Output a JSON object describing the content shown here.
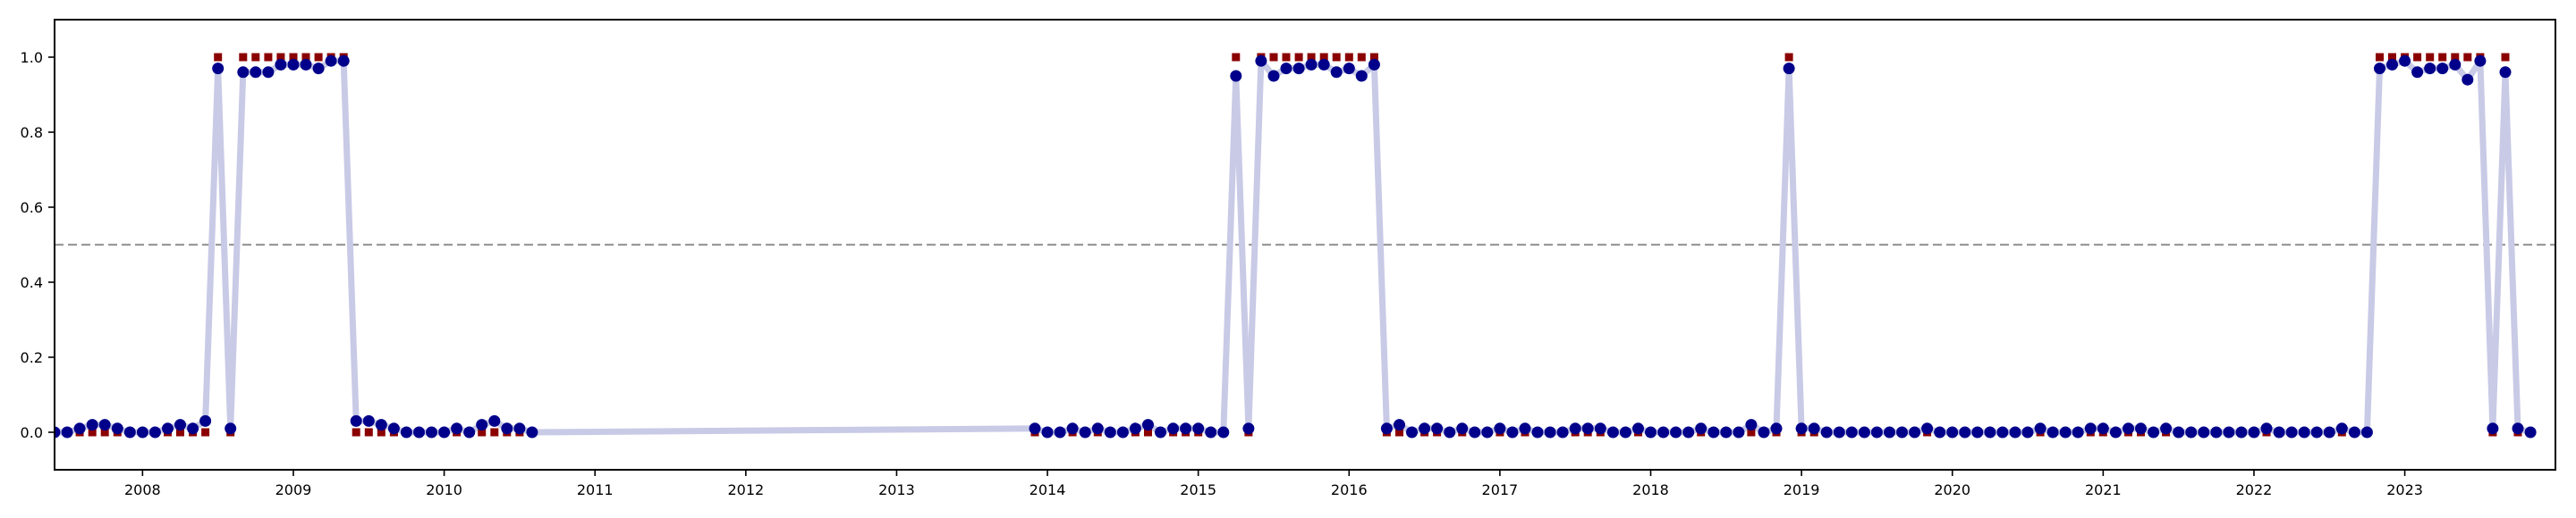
{
  "chart_data": {
    "type": "line",
    "title": "",
    "xlabel": "",
    "ylabel": "",
    "x_type": "date",
    "xlim": [
      "2007-06-01",
      "2023-12-31"
    ],
    "ylim": [
      -0.1,
      1.1
    ],
    "grid": false,
    "legend": "none",
    "x_ticks": [
      "2008",
      "2009",
      "2010",
      "2011",
      "2012",
      "2013",
      "2014",
      "2015",
      "2016",
      "2017",
      "2018",
      "2019",
      "2020",
      "2021",
      "2022",
      "2023"
    ],
    "y_ticks": [
      "0.0",
      "0.2",
      "0.4",
      "0.6",
      "0.8",
      "1.0"
    ],
    "threshold": 0.5,
    "colors": {
      "line": "#c8cae6",
      "probability_marker": "#00008b",
      "label_marker": "#8b0000",
      "threshold_line": "#999999"
    },
    "series": [
      {
        "segments": [
          [
            [
              "2007-06",
              0.0,
              0
            ],
            [
              "2007-07",
              0.0,
              0
            ],
            [
              "2007-08",
              0.01,
              0
            ],
            [
              "2007-09",
              0.02,
              0
            ],
            [
              "2007-10",
              0.02,
              0
            ],
            [
              "2007-11",
              0.01,
              0
            ],
            [
              "2007-12",
              0.0,
              0
            ],
            [
              "2008-01",
              0.0,
              0
            ],
            [
              "2008-02",
              0.0,
              0
            ],
            [
              "2008-03",
              0.01,
              0
            ],
            [
              "2008-04",
              0.02,
              0
            ],
            [
              "2008-05",
              0.01,
              0
            ],
            [
              "2008-06",
              0.03,
              0
            ],
            [
              "2008-07",
              0.97,
              1
            ],
            [
              "2008-08",
              0.01,
              0
            ],
            [
              "2008-09",
              0.96,
              1
            ],
            [
              "2008-10",
              0.96,
              1
            ],
            [
              "2008-11",
              0.96,
              1
            ],
            [
              "2008-12",
              0.98,
              1
            ],
            [
              "2009-01",
              0.98,
              1
            ],
            [
              "2009-02",
              0.98,
              1
            ],
            [
              "2009-03",
              0.97,
              1
            ],
            [
              "2009-04",
              0.99,
              1
            ],
            [
              "2009-05",
              0.99,
              1
            ],
            [
              "2009-06",
              0.03,
              0
            ],
            [
              "2009-07",
              0.03,
              0
            ],
            [
              "2009-08",
              0.02,
              0
            ],
            [
              "2009-09",
              0.01,
              0
            ],
            [
              "2009-10",
              0.0,
              0
            ],
            [
              "2009-11",
              0.0,
              0
            ],
            [
              "2009-12",
              0.0,
              0
            ],
            [
              "2010-01",
              0.0,
              0
            ],
            [
              "2010-02",
              0.01,
              0
            ],
            [
              "2010-03",
              0.0,
              0
            ],
            [
              "2010-04",
              0.02,
              0
            ],
            [
              "2010-05",
              0.03,
              0
            ],
            [
              "2010-06",
              0.01,
              0
            ],
            [
              "2010-07",
              0.01,
              0
            ],
            [
              "2010-08",
              0.0,
              0
            ]
          ],
          [
            [
              "2013-12",
              0.01,
              0
            ],
            [
              "2014-01",
              0.0,
              0
            ],
            [
              "2014-02",
              0.0,
              0
            ],
            [
              "2014-03",
              0.01,
              0
            ],
            [
              "2014-04",
              0.0,
              0
            ],
            [
              "2014-05",
              0.01,
              0
            ],
            [
              "2014-06",
              0.0,
              0
            ],
            [
              "2014-07",
              0.0,
              0
            ],
            [
              "2014-08",
              0.01,
              0
            ],
            [
              "2014-09",
              0.02,
              0
            ],
            [
              "2014-10",
              0.0,
              0
            ],
            [
              "2014-11",
              0.01,
              0
            ],
            [
              "2014-12",
              0.01,
              0
            ],
            [
              "2015-01",
              0.01,
              0
            ],
            [
              "2015-02",
              0.0,
              0
            ],
            [
              "2015-03",
              0.0,
              0
            ],
            [
              "2015-04",
              0.95,
              1
            ],
            [
              "2015-05",
              0.01,
              0
            ],
            [
              "2015-06",
              0.99,
              1
            ],
            [
              "2015-07",
              0.95,
              1
            ],
            [
              "2015-08",
              0.97,
              1
            ],
            [
              "2015-09",
              0.97,
              1
            ],
            [
              "2015-10",
              0.98,
              1
            ],
            [
              "2015-11",
              0.98,
              1
            ],
            [
              "2015-12",
              0.96,
              1
            ],
            [
              "2016-01",
              0.97,
              1
            ],
            [
              "2016-02",
              0.95,
              1
            ],
            [
              "2016-03",
              0.98,
              1
            ],
            [
              "2016-04",
              0.01,
              0
            ],
            [
              "2016-05",
              0.02,
              0
            ],
            [
              "2016-06",
              0.0,
              0
            ],
            [
              "2016-07",
              0.01,
              0
            ],
            [
              "2016-08",
              0.01,
              0
            ],
            [
              "2016-09",
              0.0,
              0
            ],
            [
              "2016-10",
              0.01,
              0
            ],
            [
              "2016-11",
              0.0,
              0
            ],
            [
              "2016-12",
              0.0,
              0
            ],
            [
              "2017-01",
              0.01,
              0
            ],
            [
              "2017-02",
              0.0,
              0
            ],
            [
              "2017-03",
              0.01,
              0
            ],
            [
              "2017-04",
              0.0,
              0
            ],
            [
              "2017-05",
              0.0,
              0
            ],
            [
              "2017-06",
              0.0,
              0
            ],
            [
              "2017-07",
              0.01,
              0
            ],
            [
              "2017-08",
              0.01,
              0
            ],
            [
              "2017-09",
              0.01,
              0
            ],
            [
              "2017-10",
              0.0,
              0
            ],
            [
              "2017-11",
              0.0,
              0
            ],
            [
              "2017-12",
              0.01,
              0
            ],
            [
              "2018-01",
              0.0,
              0
            ],
            [
              "2018-02",
              0.0,
              0
            ],
            [
              "2018-03",
              0.0,
              0
            ],
            [
              "2018-04",
              0.0,
              0
            ],
            [
              "2018-05",
              0.01,
              0
            ],
            [
              "2018-06",
              0.0,
              0
            ],
            [
              "2018-07",
              0.0,
              0
            ],
            [
              "2018-08",
              0.0,
              0
            ],
            [
              "2018-09",
              0.02,
              0
            ],
            [
              "2018-10",
              0.0,
              0
            ],
            [
              "2018-11",
              0.01,
              0
            ],
            [
              "2018-12",
              0.97,
              1
            ],
            [
              "2019-01",
              0.01,
              0
            ],
            [
              "2019-02",
              0.01,
              0
            ],
            [
              "2019-03",
              0.0,
              0
            ],
            [
              "2019-04",
              0.0,
              0
            ],
            [
              "2019-05",
              0.0,
              0
            ],
            [
              "2019-06",
              0.0,
              0
            ],
            [
              "2019-07",
              0.0,
              0
            ],
            [
              "2019-08",
              0.0,
              0
            ],
            [
              "2019-09",
              0.0,
              0
            ],
            [
              "2019-10",
              0.0,
              0
            ],
            [
              "2019-11",
              0.01,
              0
            ],
            [
              "2019-12",
              0.0,
              0
            ],
            [
              "2020-01",
              0.0,
              0
            ],
            [
              "2020-02",
              0.0,
              0
            ],
            [
              "2020-03",
              0.0,
              0
            ],
            [
              "2020-04",
              0.0,
              0
            ],
            [
              "2020-05",
              0.0,
              0
            ],
            [
              "2020-06",
              0.0,
              0
            ],
            [
              "2020-07",
              0.0,
              0
            ],
            [
              "2020-08",
              0.01,
              0
            ],
            [
              "2020-09",
              0.0,
              0
            ],
            [
              "2020-10",
              0.0,
              0
            ],
            [
              "2020-11",
              0.0,
              0
            ],
            [
              "2020-12",
              0.01,
              0
            ],
            [
              "2021-01",
              0.01,
              0
            ],
            [
              "2021-02",
              0.0,
              0
            ],
            [
              "2021-03",
              0.01,
              0
            ],
            [
              "2021-04",
              0.01,
              0
            ],
            [
              "2021-05",
              0.0,
              0
            ],
            [
              "2021-06",
              0.01,
              0
            ],
            [
              "2021-07",
              0.0,
              0
            ],
            [
              "2021-08",
              0.0,
              0
            ],
            [
              "2021-09",
              0.0,
              0
            ],
            [
              "2021-10",
              0.0,
              0
            ],
            [
              "2021-11",
              0.0,
              0
            ],
            [
              "2021-12",
              0.0,
              0
            ],
            [
              "2022-01",
              0.0,
              0
            ],
            [
              "2022-02",
              0.01,
              0
            ],
            [
              "2022-03",
              0.0,
              0
            ],
            [
              "2022-04",
              0.0,
              0
            ],
            [
              "2022-05",
              0.0,
              0
            ],
            [
              "2022-06",
              0.0,
              0
            ],
            [
              "2022-07",
              0.0,
              0
            ],
            [
              "2022-08",
              0.01,
              0
            ],
            [
              "2022-09",
              0.0,
              0
            ],
            [
              "2022-10",
              0.0,
              0
            ],
            [
              "2022-11",
              0.97,
              1
            ],
            [
              "2022-12",
              0.98,
              1
            ],
            [
              "2023-01",
              0.99,
              1
            ],
            [
              "2023-02",
              0.96,
              1
            ],
            [
              "2023-03",
              0.97,
              1
            ],
            [
              "2023-04",
              0.97,
              1
            ],
            [
              "2023-05",
              0.98,
              1
            ],
            [
              "2023-06",
              0.94,
              1
            ],
            [
              "2023-07",
              0.99,
              1
            ],
            [
              "2023-08",
              0.01,
              0
            ],
            [
              "2023-09",
              0.96,
              1
            ],
            [
              "2023-10",
              0.01,
              0
            ],
            [
              "2023-11",
              0.0,
              0
            ]
          ]
        ]
      }
    ]
  }
}
